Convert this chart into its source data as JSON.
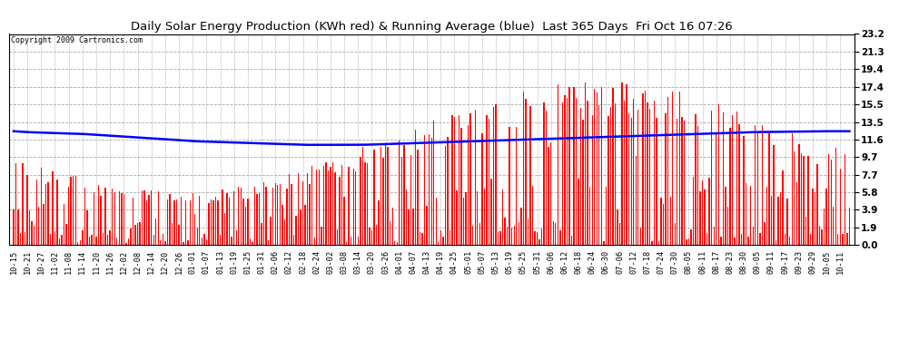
{
  "title": "Daily Solar Energy Production (KWh red) & Running Average (blue)  Last 365 Days  Fri Oct 16 07:26",
  "copyright": "Copyright 2009 Cartronics.com",
  "yticks": [
    0.0,
    1.9,
    3.9,
    5.8,
    7.7,
    9.7,
    11.6,
    13.5,
    15.5,
    17.4,
    19.4,
    21.3,
    23.2
  ],
  "ymax": 23.2,
  "bar_color": "#FF0000",
  "avg_color": "#0000FF",
  "bg_color": "#FFFFFF",
  "grid_color": "#AAAAAA",
  "x_labels": [
    "10-15",
    "10-21",
    "10-27",
    "11-02",
    "11-08",
    "11-14",
    "11-20",
    "11-26",
    "12-02",
    "12-08",
    "12-14",
    "12-20",
    "12-26",
    "01-01",
    "01-07",
    "01-13",
    "01-19",
    "01-25",
    "01-31",
    "02-06",
    "02-12",
    "02-18",
    "02-24",
    "03-02",
    "03-08",
    "03-14",
    "03-20",
    "03-26",
    "04-01",
    "04-07",
    "04-13",
    "04-19",
    "04-25",
    "05-01",
    "05-07",
    "05-13",
    "05-19",
    "05-25",
    "05-31",
    "06-06",
    "06-12",
    "06-18",
    "06-24",
    "06-30",
    "07-06",
    "07-12",
    "07-18",
    "07-24",
    "07-30",
    "08-05",
    "08-11",
    "08-17",
    "08-23",
    "08-30",
    "09-05",
    "09-11",
    "09-17",
    "09-23",
    "09-29",
    "10-05",
    "10-11"
  ],
  "avg_points": [
    12.5,
    12.4,
    12.35,
    12.3,
    12.25,
    12.2,
    12.1,
    12.0,
    11.9,
    11.8,
    11.7,
    11.6,
    11.5,
    11.4,
    11.35,
    11.3,
    11.25,
    11.2,
    11.15,
    11.1,
    11.05,
    11.0,
    11.0,
    11.0,
    11.0,
    11.0,
    11.05,
    11.1,
    11.15,
    11.2,
    11.25,
    11.3,
    11.35,
    11.4,
    11.45,
    11.5,
    11.55,
    11.6,
    11.65,
    11.7,
    11.75,
    11.8,
    11.85,
    11.9,
    11.95,
    12.0,
    12.05,
    12.1,
    12.15,
    12.2,
    12.25,
    12.3,
    12.35,
    12.4,
    12.42,
    12.44,
    12.46,
    12.48,
    12.5,
    12.5,
    12.5
  ]
}
